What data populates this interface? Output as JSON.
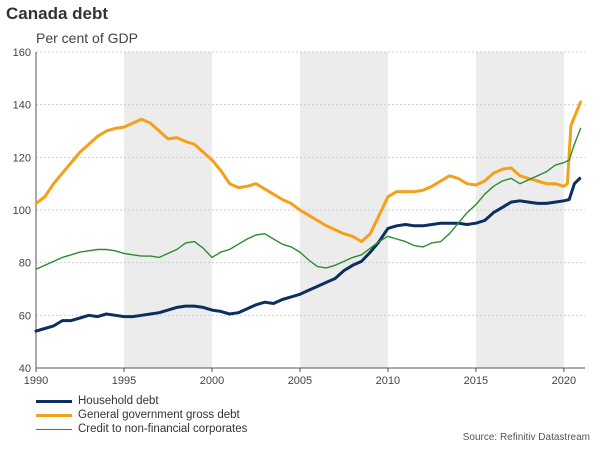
{
  "chart_data": {
    "type": "line",
    "title": "Canada debt",
    "subtitle": "Per cent of GDP",
    "source": "Source: Refinitiv Datastream",
    "xlim": [
      1990,
      2021.2
    ],
    "ylim": [
      40,
      160
    ],
    "x_ticks": [
      "1990",
      "1995",
      "2000",
      "2005",
      "2010",
      "2015",
      "2020"
    ],
    "y_ticks": [
      "40",
      "60",
      "80",
      "100",
      "120",
      "140",
      "160"
    ],
    "recession_shading": [
      [
        1995,
        2000
      ],
      [
        2005,
        2010
      ],
      [
        2015,
        2020
      ]
    ],
    "grid": "horizontal dashed",
    "legend_position": "bottom-left",
    "series": [
      {
        "name": "Household debt",
        "color": "#0b2f5e",
        "width": 3,
        "points": [
          [
            1990,
            54
          ],
          [
            1990.5,
            55
          ],
          [
            1991,
            56
          ],
          [
            1991.5,
            58
          ],
          [
            1992,
            58
          ],
          [
            1992.5,
            59
          ],
          [
            1993,
            60
          ],
          [
            1993.5,
            59.5
          ],
          [
            1994,
            60.5
          ],
          [
            1994.5,
            60
          ],
          [
            1995,
            59.5
          ],
          [
            1995.5,
            59.5
          ],
          [
            1996,
            60
          ],
          [
            1996.5,
            60.5
          ],
          [
            1997,
            61
          ],
          [
            1997.5,
            62
          ],
          [
            1998,
            63
          ],
          [
            1998.5,
            63.5
          ],
          [
            1999,
            63.5
          ],
          [
            1999.5,
            63
          ],
          [
            2000,
            62
          ],
          [
            2000.5,
            61.5
          ],
          [
            2001,
            60.5
          ],
          [
            2001.5,
            61
          ],
          [
            2002,
            62.5
          ],
          [
            2002.5,
            64
          ],
          [
            2003,
            65
          ],
          [
            2003.5,
            64.5
          ],
          [
            2004,
            66
          ],
          [
            2004.5,
            67
          ],
          [
            2005,
            68
          ],
          [
            2005.5,
            69.5
          ],
          [
            2006,
            71
          ],
          [
            2006.5,
            72.5
          ],
          [
            2007,
            74
          ],
          [
            2007.5,
            77
          ],
          [
            2008,
            79
          ],
          [
            2008.5,
            80.5
          ],
          [
            2009,
            84
          ],
          [
            2009.5,
            88
          ],
          [
            2010,
            93
          ],
          [
            2010.5,
            94
          ],
          [
            2011,
            94.5
          ],
          [
            2011.5,
            94
          ],
          [
            2012,
            94
          ],
          [
            2012.5,
            94.5
          ],
          [
            2013,
            95
          ],
          [
            2013.5,
            95
          ],
          [
            2014,
            95
          ],
          [
            2014.5,
            94.5
          ],
          [
            2015,
            95
          ],
          [
            2015.5,
            96
          ],
          [
            2016,
            99
          ],
          [
            2016.5,
            101
          ],
          [
            2017,
            103
          ],
          [
            2017.5,
            103.5
          ],
          [
            2018,
            103
          ],
          [
            2018.5,
            102.5
          ],
          [
            2019,
            102.5
          ],
          [
            2019.5,
            103
          ],
          [
            2020,
            103.5
          ],
          [
            2020.3,
            104
          ],
          [
            2020.6,
            110
          ],
          [
            2020.9,
            112
          ]
        ]
      },
      {
        "name": "General government gross debt",
        "color": "#f5a01a",
        "width": 3,
        "points": [
          [
            1990,
            102.5
          ],
          [
            1990.5,
            105
          ],
          [
            1991,
            110
          ],
          [
            1991.5,
            114
          ],
          [
            1992,
            118
          ],
          [
            1992.5,
            122
          ],
          [
            1993,
            125
          ],
          [
            1993.5,
            128
          ],
          [
            1994,
            130
          ],
          [
            1994.5,
            131
          ],
          [
            1995,
            131.5
          ],
          [
            1995.5,
            133
          ],
          [
            1996,
            134.5
          ],
          [
            1996.5,
            133
          ],
          [
            1997,
            130
          ],
          [
            1997.5,
            127
          ],
          [
            1998,
            127.5
          ],
          [
            1998.5,
            126
          ],
          [
            1999,
            125
          ],
          [
            1999.5,
            122
          ],
          [
            2000,
            119
          ],
          [
            2000.5,
            115
          ],
          [
            2001,
            110
          ],
          [
            2001.5,
            108.5
          ],
          [
            2002,
            109
          ],
          [
            2002.5,
            110
          ],
          [
            2003,
            108
          ],
          [
            2003.5,
            106
          ],
          [
            2004,
            104
          ],
          [
            2004.5,
            102.5
          ],
          [
            2005,
            100
          ],
          [
            2005.5,
            98
          ],
          [
            2006,
            96
          ],
          [
            2006.5,
            94
          ],
          [
            2007,
            92.5
          ],
          [
            2007.5,
            91
          ],
          [
            2008,
            90
          ],
          [
            2008.5,
            88
          ],
          [
            2009,
            91
          ],
          [
            2009.5,
            98
          ],
          [
            2010,
            105
          ],
          [
            2010.5,
            107
          ],
          [
            2011,
            107
          ],
          [
            2011.5,
            107
          ],
          [
            2012,
            107.5
          ],
          [
            2012.5,
            109
          ],
          [
            2013,
            111
          ],
          [
            2013.5,
            113
          ],
          [
            2014,
            112
          ],
          [
            2014.5,
            110
          ],
          [
            2015,
            109.5
          ],
          [
            2015.5,
            111
          ],
          [
            2016,
            114
          ],
          [
            2016.5,
            115.5
          ],
          [
            2017,
            116
          ],
          [
            2017.5,
            113
          ],
          [
            2018,
            112
          ],
          [
            2018.5,
            111
          ],
          [
            2019,
            110
          ],
          [
            2019.5,
            110
          ],
          [
            2020,
            109
          ],
          [
            2020.2,
            110
          ],
          [
            2020.4,
            132
          ],
          [
            2020.7,
            137
          ],
          [
            2020.95,
            141
          ]
        ]
      },
      {
        "name": "Credit to non-financial corporates",
        "color": "#2e8b2e",
        "width": 1.4,
        "points": [
          [
            1990,
            77.5
          ],
          [
            1990.5,
            79
          ],
          [
            1991,
            80.5
          ],
          [
            1991.5,
            82
          ],
          [
            1992,
            83
          ],
          [
            1992.5,
            84
          ],
          [
            1993,
            84.5
          ],
          [
            1993.5,
            85
          ],
          [
            1994,
            85
          ],
          [
            1994.5,
            84.5
          ],
          [
            1995,
            83.5
          ],
          [
            1995.5,
            83
          ],
          [
            1996,
            82.5
          ],
          [
            1996.5,
            82.5
          ],
          [
            1997,
            82
          ],
          [
            1997.5,
            83.5
          ],
          [
            1998,
            85
          ],
          [
            1998.5,
            87.5
          ],
          [
            1999,
            88
          ],
          [
            1999.5,
            85.5
          ],
          [
            2000,
            82
          ],
          [
            2000.5,
            84
          ],
          [
            2001,
            85
          ],
          [
            2001.5,
            87
          ],
          [
            2002,
            89
          ],
          [
            2002.5,
            90.5
          ],
          [
            2003,
            91
          ],
          [
            2003.5,
            89
          ],
          [
            2004,
            87
          ],
          [
            2004.5,
            86
          ],
          [
            2005,
            84
          ],
          [
            2005.5,
            81
          ],
          [
            2006,
            78.5
          ],
          [
            2006.5,
            78
          ],
          [
            2007,
            79
          ],
          [
            2007.5,
            80.5
          ],
          [
            2008,
            82
          ],
          [
            2008.5,
            83
          ],
          [
            2009,
            85.5
          ],
          [
            2009.5,
            88
          ],
          [
            2010,
            90
          ],
          [
            2010.5,
            89
          ],
          [
            2011,
            88
          ],
          [
            2011.5,
            86.5
          ],
          [
            2012,
            86
          ],
          [
            2012.5,
            87.5
          ],
          [
            2013,
            88
          ],
          [
            2013.5,
            91
          ],
          [
            2014,
            95
          ],
          [
            2014.5,
            99
          ],
          [
            2015,
            102
          ],
          [
            2015.5,
            106
          ],
          [
            2016,
            109
          ],
          [
            2016.5,
            111
          ],
          [
            2017,
            112
          ],
          [
            2017.5,
            110
          ],
          [
            2018,
            111.5
          ],
          [
            2018.5,
            113
          ],
          [
            2019,
            114.5
          ],
          [
            2019.5,
            117
          ],
          [
            2020,
            118
          ],
          [
            2020.3,
            119
          ],
          [
            2020.6,
            125
          ],
          [
            2020.95,
            131
          ]
        ]
      }
    ]
  }
}
